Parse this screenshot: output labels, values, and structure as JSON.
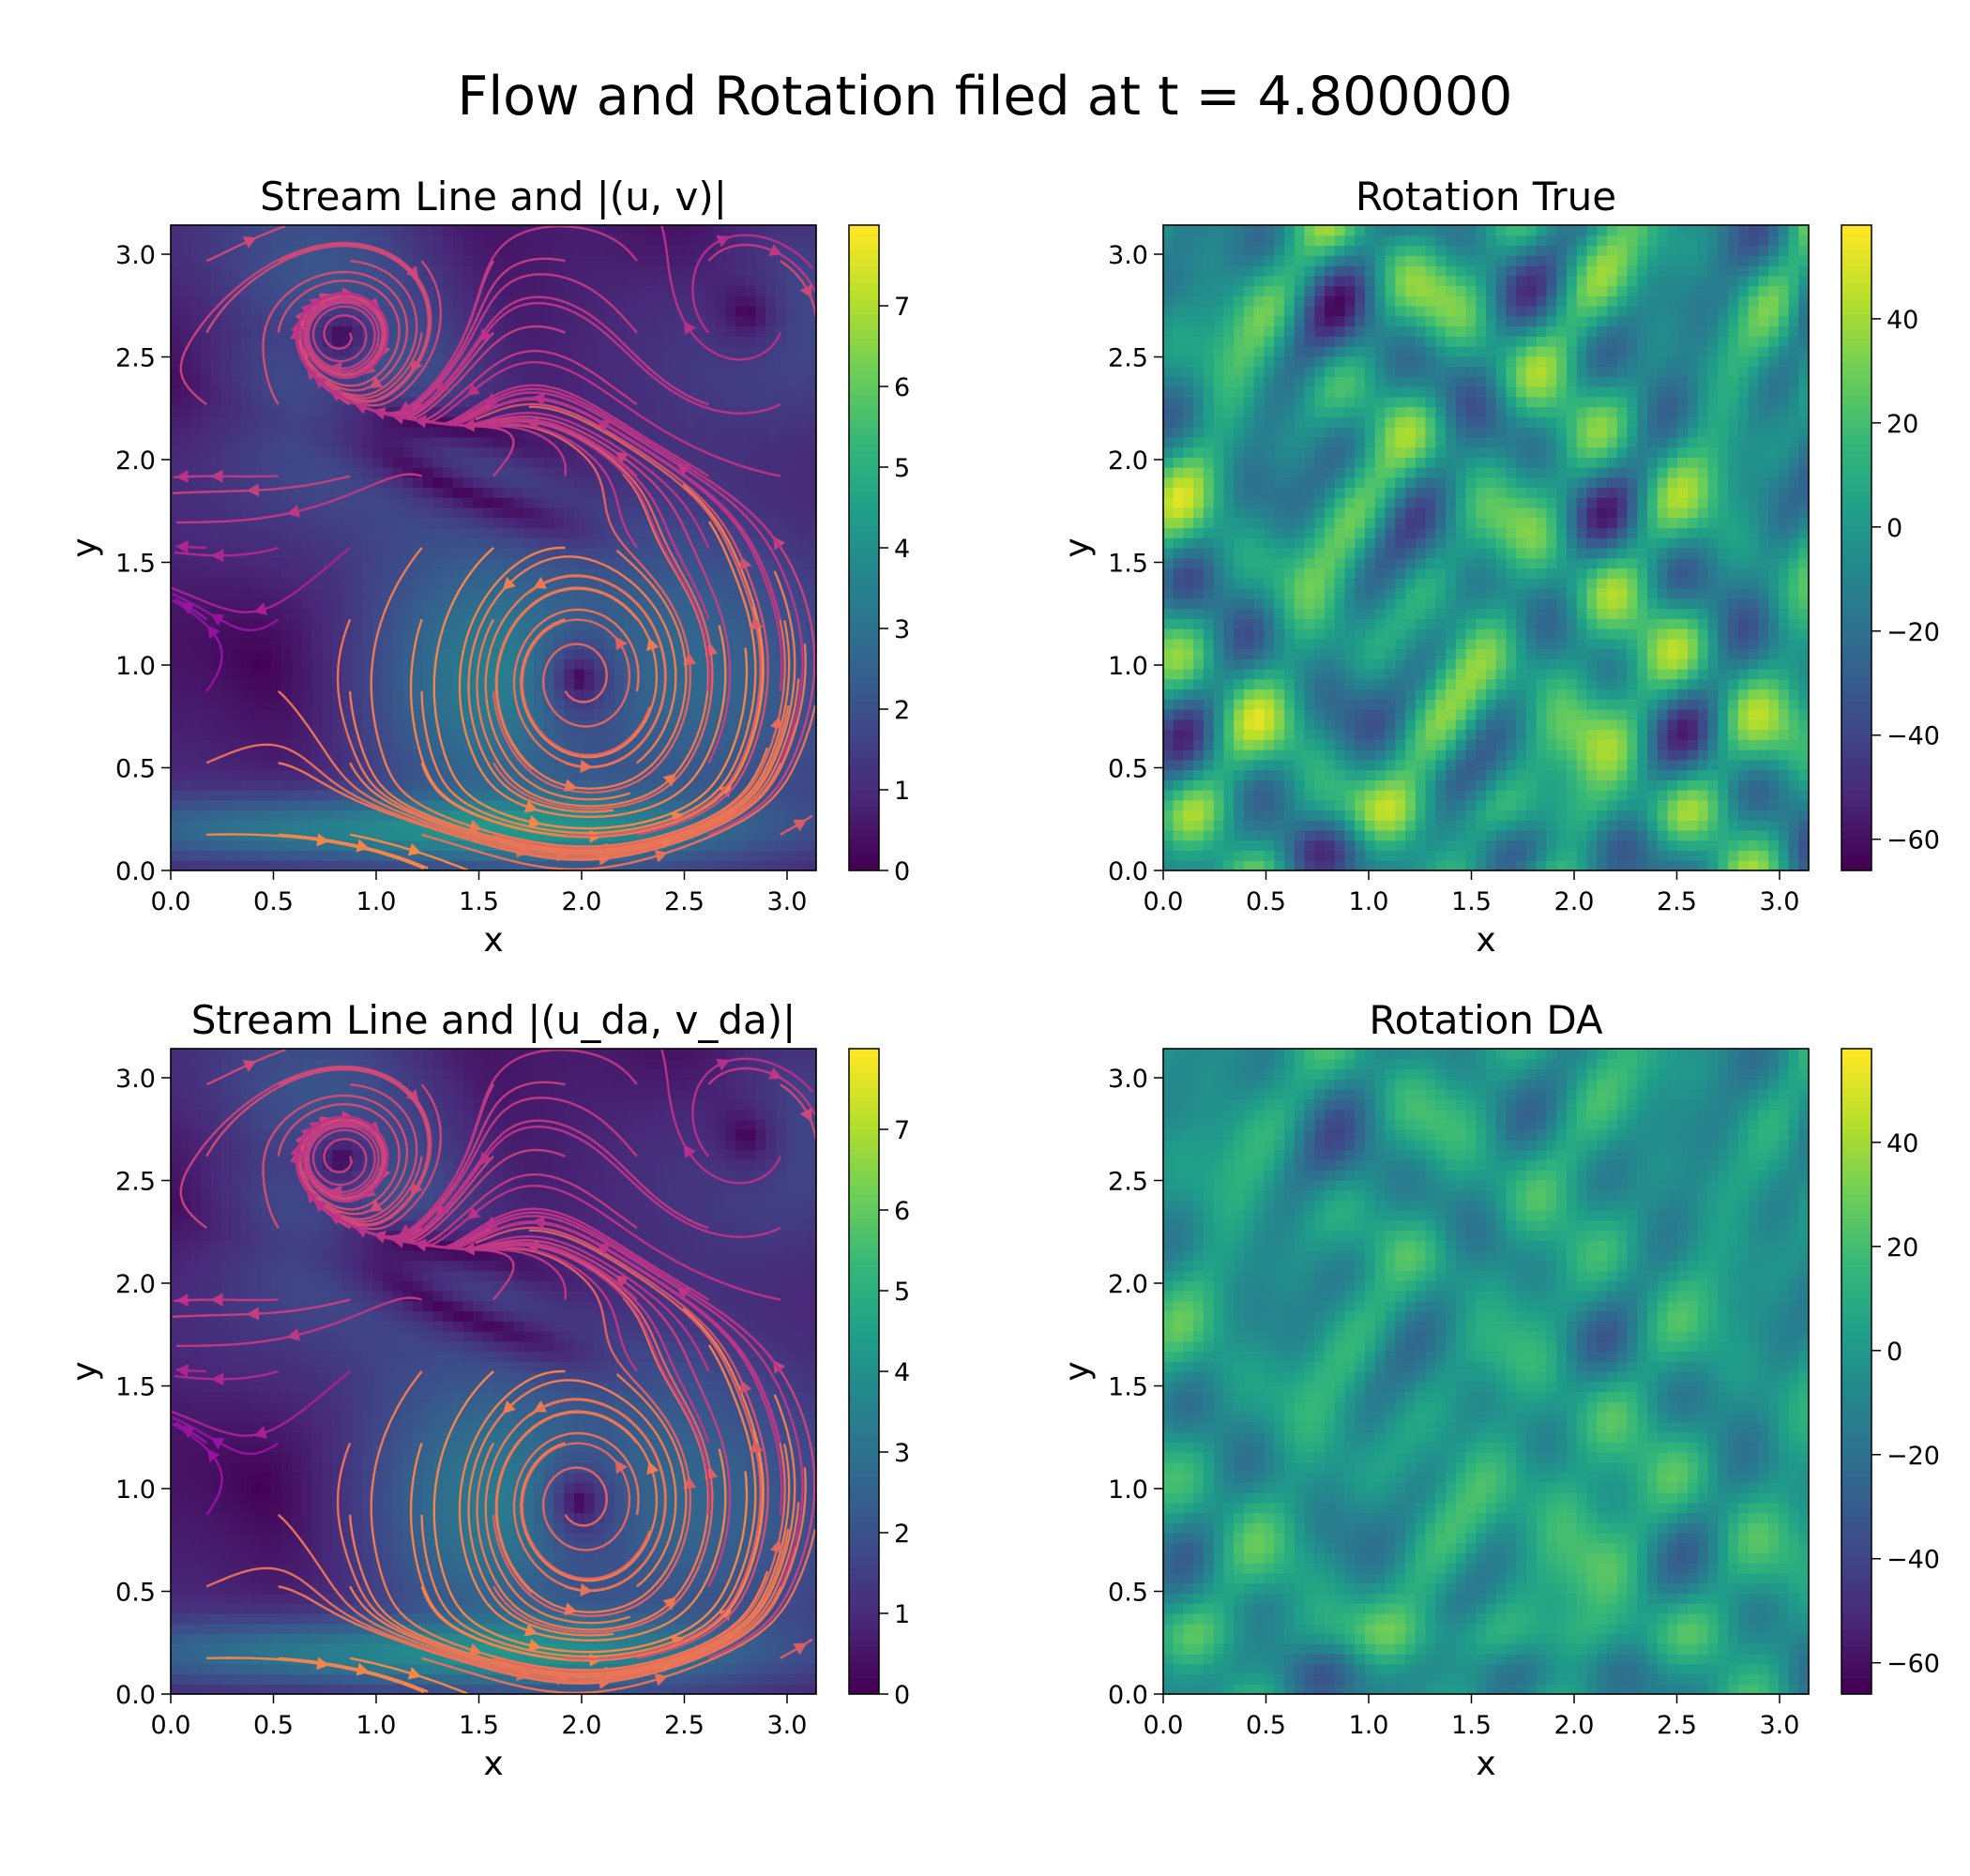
{
  "figure": {
    "suptitle": "Flow and Rotation filed at t = 4.800000"
  },
  "chart_data": [
    {
      "type": "heatmap",
      "overlay": "streamlines",
      "title": "Stream Line and |(u, v)|",
      "xlabel": "x",
      "ylabel": "y",
      "xlim": [
        0,
        3.1416
      ],
      "ylim": [
        0,
        3.1416
      ],
      "xticks": [
        "0.0",
        "0.5",
        "1.0",
        "1.5",
        "2.0",
        "2.5",
        "3.0"
      ],
      "yticks": [
        "0.0",
        "0.5",
        "1.0",
        "1.5",
        "2.0",
        "2.5",
        "3.0"
      ],
      "colormap": "viridis",
      "streamline_colormap": "plasma",
      "color_range": [
        0,
        8
      ],
      "colorbar_ticks": [
        "0",
        "1",
        "2",
        "3",
        "4",
        "5",
        "6",
        "7"
      ],
      "vortices": [
        {
          "x": 1.95,
          "y": 0.95,
          "direction": "counterclockwise"
        },
        {
          "x": 0.85,
          "y": 2.6,
          "direction": "clockwise"
        }
      ]
    },
    {
      "type": "heatmap",
      "title": "Rotation True",
      "xlabel": "x",
      "ylabel": "y",
      "xlim": [
        0,
        3.1416
      ],
      "ylim": [
        0,
        3.1416
      ],
      "xticks": [
        "0.0",
        "0.5",
        "1.0",
        "1.5",
        "2.0",
        "2.5",
        "3.0"
      ],
      "yticks": [
        "0.0",
        "0.5",
        "1.0",
        "1.5",
        "2.0",
        "2.5",
        "3.0"
      ],
      "colormap": "viridis",
      "color_range": [
        -66,
        58
      ],
      "colorbar_ticks": [
        "40",
        "20",
        "0",
        "−20",
        "−40",
        "−60"
      ]
    },
    {
      "type": "heatmap",
      "overlay": "streamlines",
      "title": "Stream Line and |(u_da, v_da)|",
      "xlabel": "x",
      "ylabel": "y",
      "xlim": [
        0,
        3.1416
      ],
      "ylim": [
        0,
        3.1416
      ],
      "xticks": [
        "0.0",
        "0.5",
        "1.0",
        "1.5",
        "2.0",
        "2.5",
        "3.0"
      ],
      "yticks": [
        "0.0",
        "0.5",
        "1.0",
        "1.5",
        "2.0",
        "2.5",
        "3.0"
      ],
      "colormap": "viridis",
      "streamline_colormap": "plasma",
      "color_range": [
        0,
        8
      ],
      "colorbar_ticks": [
        "0",
        "1",
        "2",
        "3",
        "4",
        "5",
        "6",
        "7"
      ],
      "vortices": [
        {
          "x": 1.95,
          "y": 0.95,
          "direction": "counterclockwise"
        },
        {
          "x": 0.85,
          "y": 2.6,
          "direction": "clockwise"
        }
      ]
    },
    {
      "type": "heatmap",
      "title": "Rotation DA",
      "xlabel": "x",
      "ylabel": "y",
      "xlim": [
        0,
        3.1416
      ],
      "ylim": [
        0,
        3.1416
      ],
      "xticks": [
        "0.0",
        "0.5",
        "1.0",
        "1.5",
        "2.0",
        "2.5",
        "3.0"
      ],
      "yticks": [
        "0.0",
        "0.5",
        "1.0",
        "1.5",
        "2.0",
        "2.5",
        "3.0"
      ],
      "colormap": "viridis",
      "color_range": [
        -66,
        58
      ],
      "colorbar_ticks": [
        "40",
        "20",
        "0",
        "−20",
        "−40",
        "−60"
      ]
    }
  ]
}
